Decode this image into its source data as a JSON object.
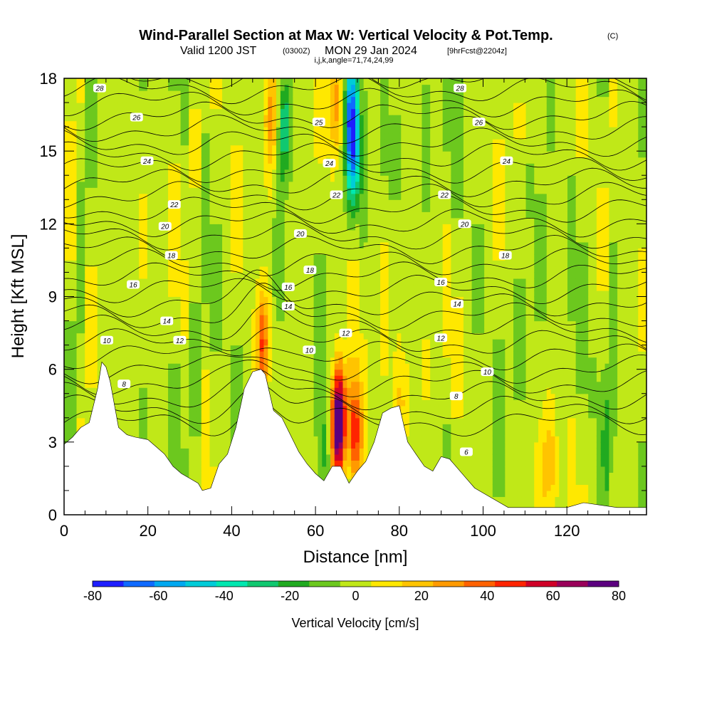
{
  "title": {
    "main": "Wind-Parallel Section at Max W: Vertical Velocity & Pot.Temp.",
    "copyright": "(C)",
    "valid_prefix": "Valid 1200 JST",
    "valid_utc": "(0300Z)",
    "valid_date": "MON 29 Jan 2024",
    "forecast": "[9hrFcst@2204z]",
    "indices": "i,j,k,angle=71,74,24,99"
  },
  "chart_data": {
    "type": "heatmap",
    "xlabel": "Distance [nm]",
    "ylabel": "Height [Kft MSL]",
    "xlim": [
      0,
      139
    ],
    "ylim": [
      0,
      18
    ],
    "x_ticks": [
      "0",
      "20",
      "40",
      "60",
      "80",
      "100",
      "120"
    ],
    "y_ticks": [
      "0",
      "3",
      "6",
      "9",
      "12",
      "15",
      "18"
    ],
    "x_tick_values": [
      0,
      20,
      40,
      60,
      80,
      100,
      120
    ],
    "y_tick_values": [
      0,
      3,
      6,
      9,
      12,
      15,
      18
    ],
    "colorbar": {
      "label": "Vertical Velocity [cm/s]",
      "tick_labels": [
        "-80",
        "-60",
        "-40",
        "-20",
        "0",
        "20",
        "40",
        "60",
        "80"
      ],
      "tick_values": [
        -80,
        -60,
        -40,
        -20,
        0,
        20,
        40,
        60,
        80
      ],
      "levels": [
        -80,
        -70,
        -60,
        -50,
        -40,
        -30,
        -20,
        -10,
        0,
        10,
        20,
        30,
        40,
        50,
        60,
        70,
        80
      ],
      "colors": [
        "#1e1eff",
        "#0f6aff",
        "#00a8f0",
        "#00ccd8",
        "#00e8b0",
        "#10c870",
        "#20aa20",
        "#6cc81e",
        "#c0e818",
        "#ffe800",
        "#ffc400",
        "#ff9a00",
        "#ff6200",
        "#ff2400",
        "#d00028",
        "#9a005a",
        "#5c0080"
      ]
    },
    "contour_field": "Potential Temperature",
    "contour_labels": [
      {
        "label": "28",
        "x": 8.5,
        "y": 17.6
      },
      {
        "label": "26",
        "x": 17.3,
        "y": 16.4
      },
      {
        "label": "24",
        "x": 19.8,
        "y": 14.6
      },
      {
        "label": "22",
        "x": 26.3,
        "y": 12.8
      },
      {
        "label": "20",
        "x": 24.1,
        "y": 11.9
      },
      {
        "label": "18",
        "x": 25.6,
        "y": 10.7
      },
      {
        "label": "16",
        "x": 16.5,
        "y": 9.5
      },
      {
        "label": "14",
        "x": 24.5,
        "y": 8.0
      },
      {
        "label": "12",
        "x": 27.6,
        "y": 7.2
      },
      {
        "label": "10",
        "x": 10.2,
        "y": 7.2
      },
      {
        "label": "8",
        "x": 14.3,
        "y": 5.4
      },
      {
        "label": "25",
        "x": 60.8,
        "y": 16.2
      },
      {
        "label": "24",
        "x": 63.3,
        "y": 14.5
      },
      {
        "label": "22",
        "x": 65.0,
        "y": 13.2
      },
      {
        "label": "20",
        "x": 56.4,
        "y": 11.6
      },
      {
        "label": "18",
        "x": 58.7,
        "y": 10.1
      },
      {
        "label": "16",
        "x": 53.5,
        "y": 9.4
      },
      {
        "label": "14",
        "x": 53.5,
        "y": 8.6
      },
      {
        "label": "12",
        "x": 67.2,
        "y": 7.5
      },
      {
        "label": "10",
        "x": 58.5,
        "y": 6.8
      },
      {
        "label": "28",
        "x": 94.5,
        "y": 17.6
      },
      {
        "label": "26",
        "x": 99.0,
        "y": 16.2
      },
      {
        "label": "24",
        "x": 105.6,
        "y": 14.6
      },
      {
        "label": "22",
        "x": 90.8,
        "y": 13.2
      },
      {
        "label": "20",
        "x": 95.6,
        "y": 12.0
      },
      {
        "label": "18",
        "x": 105.3,
        "y": 10.7
      },
      {
        "label": "16",
        "x": 89.9,
        "y": 9.6
      },
      {
        "label": "14",
        "x": 93.8,
        "y": 8.7
      },
      {
        "label": "12",
        "x": 89.9,
        "y": 7.3
      },
      {
        "label": "10",
        "x": 101.0,
        "y": 5.9
      },
      {
        "label": "8",
        "x": 93.6,
        "y": 4.9
      },
      {
        "label": "6",
        "x": 96.0,
        "y": 2.6
      }
    ],
    "updraft_cores": [
      {
        "x": 47.5,
        "y": 7.0,
        "w": 45
      },
      {
        "x": 65.0,
        "y": 3.5,
        "w": 60
      },
      {
        "x": 66.0,
        "y": 4.2,
        "w": 50
      },
      {
        "x": 69.5,
        "y": 3.3,
        "w": 55
      },
      {
        "x": 65.0,
        "y": 17.0,
        "w": 30
      },
      {
        "x": 49.5,
        "y": 16.5,
        "w": 30
      },
      {
        "x": 81.0,
        "y": 4.5,
        "w": 20
      },
      {
        "x": 116.0,
        "y": 2.0,
        "w": 25
      }
    ],
    "downdraft_cores": [
      {
        "x": 68.5,
        "y": 16.5,
        "w": -55
      },
      {
        "x": 69.0,
        "y": 14.5,
        "w": -40
      },
      {
        "x": 52.5,
        "y": 16.0,
        "w": -35
      },
      {
        "x": 62.0,
        "y": 2.5,
        "w": -20
      },
      {
        "x": 130.0,
        "y": 3.0,
        "w": -15
      }
    ]
  }
}
